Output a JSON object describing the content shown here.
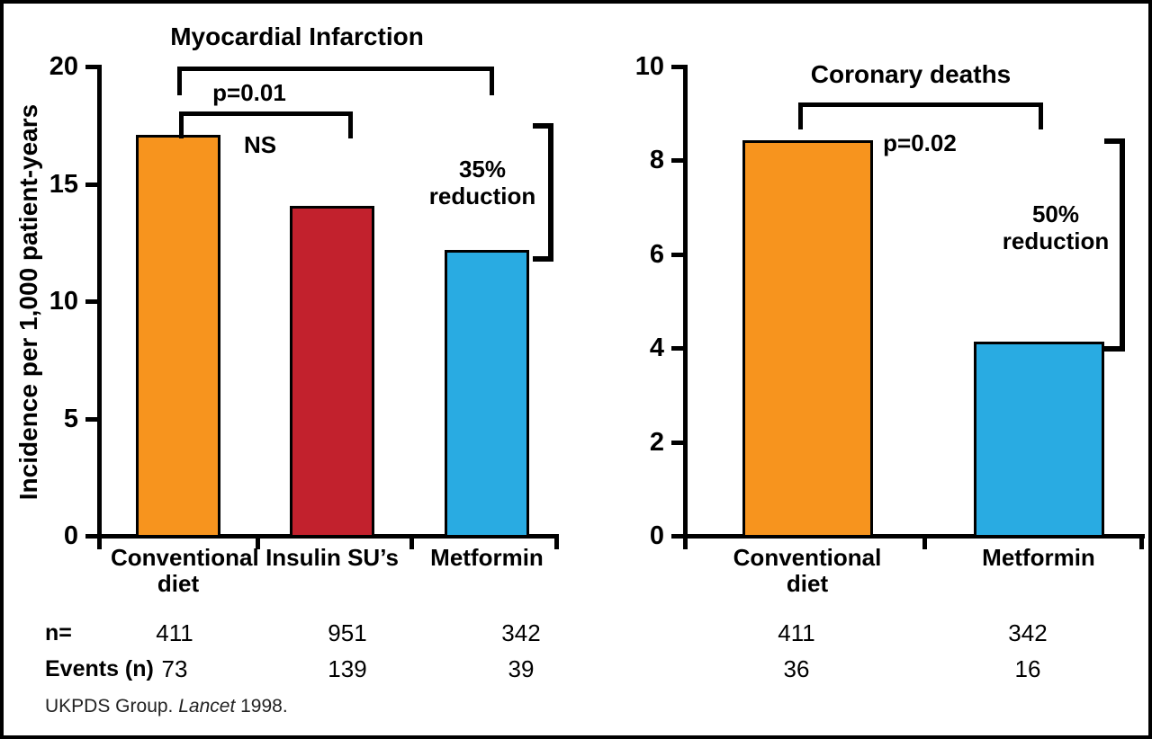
{
  "figure": {
    "row_labels": {
      "n": "n=",
      "events": "Events (n)"
    },
    "footer": {
      "before": "UKPDS Group. ",
      "journal": "Lancet",
      "after": " 1998."
    }
  },
  "chart_data": [
    {
      "type": "bar",
      "title": "Myocardial Infarction",
      "ylabel": "Incidence per 1,000 patient-years",
      "categories": [
        "Conventional diet",
        "Insulin SU’s",
        "Metformin"
      ],
      "values": [
        17,
        14,
        12.1
      ],
      "bar_colors": [
        "#F7941E",
        "#C2212D",
        "#29ABE2"
      ],
      "ylim": [
        0,
        20
      ],
      "yticks": [
        0,
        5,
        10,
        15,
        20
      ],
      "grid": false,
      "n_per_group": [
        411,
        951,
        342
      ],
      "events": [
        73,
        139,
        39
      ],
      "annotations": {
        "outer_bracket_label": "p=0.01",
        "inner_bracket_label": "NS",
        "reduction_label": "35%\nreduction"
      }
    },
    {
      "type": "bar",
      "title": "Coronary deaths",
      "ylabel": "Incidence per 1,000 patient-years",
      "categories": [
        "Conventional diet",
        "Metformin"
      ],
      "values": [
        8.4,
        4.1
      ],
      "bar_colors": [
        "#F7941E",
        "#29ABE2"
      ],
      "ylim": [
        0,
        10
      ],
      "yticks": [
        0,
        2,
        4,
        6,
        8,
        10
      ],
      "grid": false,
      "n_per_group": [
        411,
        342
      ],
      "events": [
        36,
        16
      ],
      "annotations": {
        "bracket_label": "p=0.02",
        "reduction_label": "50%\nreduction"
      }
    }
  ]
}
